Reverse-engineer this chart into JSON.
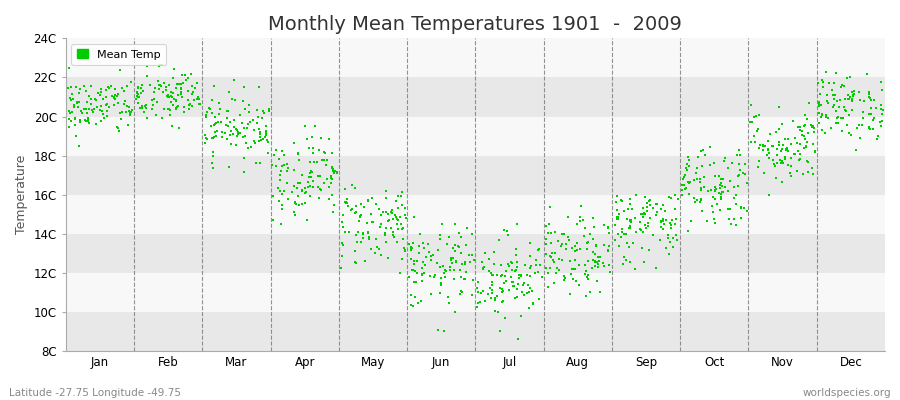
{
  "title": "Monthly Mean Temperatures 1901  -  2009",
  "ylabel": "Temperature",
  "xlabel_labels": [
    "Jan",
    "Feb",
    "Mar",
    "Apr",
    "May",
    "Jun",
    "Jul",
    "Aug",
    "Sep",
    "Oct",
    "Nov",
    "Dec"
  ],
  "ytick_labels": [
    "8C",
    "10C",
    "12C",
    "14C",
    "16C",
    "18C",
    "20C",
    "22C",
    "24C"
  ],
  "ytick_values": [
    8,
    10,
    12,
    14,
    16,
    18,
    20,
    22,
    24
  ],
  "ylim": [
    8,
    24
  ],
  "dot_color": "#00cc00",
  "bg_color": "#ffffff",
  "plot_bg_color": "#ffffff",
  "legend_label": "Mean Temp",
  "footer_left": "Latitude -27.75 Longitude -49.75",
  "footer_right": "worldspecies.org",
  "monthly_means": [
    20.5,
    21.0,
    19.5,
    17.0,
    14.5,
    12.2,
    11.8,
    12.8,
    14.5,
    16.5,
    18.5,
    20.5
  ],
  "monthly_stds": [
    0.75,
    0.75,
    0.85,
    1.1,
    1.1,
    1.1,
    1.1,
    1.0,
    1.0,
    1.1,
    1.0,
    0.85
  ],
  "monthly_min": [
    18.5,
    18.5,
    17.0,
    14.5,
    12.0,
    9.0,
    8.5,
    10.0,
    12.0,
    13.5,
    16.0,
    18.0
  ],
  "monthly_max": [
    22.5,
    23.0,
    22.5,
    19.5,
    16.5,
    16.5,
    15.5,
    15.5,
    16.0,
    18.5,
    21.5,
    22.5
  ],
  "n_years": 109,
  "title_fontsize": 14,
  "label_fontsize": 9,
  "tick_fontsize": 8.5,
  "dot_size": 4,
  "band_colors": [
    "#e8e8e8",
    "#f8f8f8"
  ]
}
